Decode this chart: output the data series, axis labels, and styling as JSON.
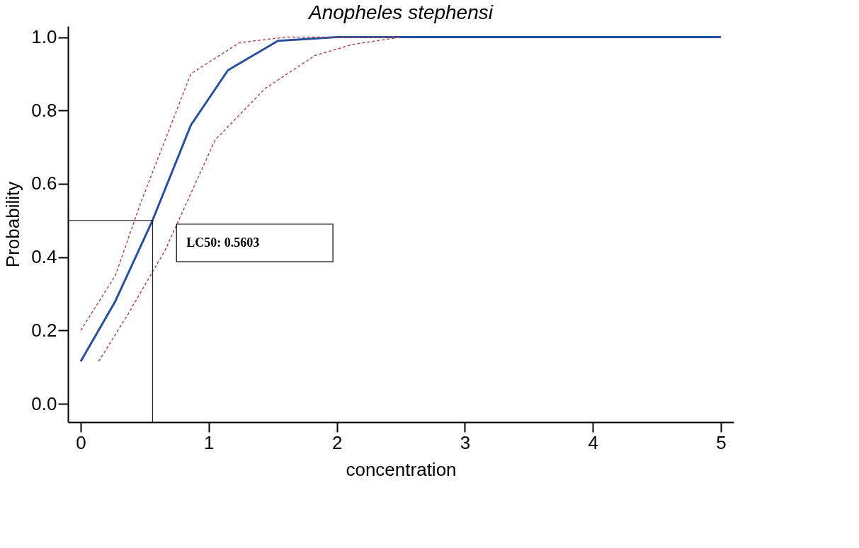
{
  "chart_data": {
    "type": "line",
    "title": "Anopheles stephensi",
    "xlabel": "concentration",
    "ylabel": "Probability",
    "xlim": [
      -0.1,
      5.1
    ],
    "ylim": [
      -0.05,
      1.03
    ],
    "xticks": [
      0,
      1,
      2,
      3,
      4,
      5
    ],
    "yticks": [
      {
        "value": 0,
        "label": "0.0"
      },
      0.2,
      0.4,
      0.6,
      0.8,
      {
        "value": 1,
        "label": "1.0"
      }
    ],
    "grid": false,
    "series": [
      {
        "line_style": "solid",
        "color": "#2a4f9e",
        "x": [
          0,
          0.27,
          0.56,
          0.86,
          1.15,
          1.54,
          2.0,
          3.0,
          4.0,
          5.0
        ],
        "values": [
          0.116,
          0.28,
          0.5,
          0.76,
          0.91,
          0.99,
          1.0,
          1.0,
          1.0,
          1.0
        ]
      },
      {
        "line_style": "dashed",
        "color": "#b04a55",
        "x": [
          0,
          0.27,
          0.47,
          0.86,
          1.24,
          1.6,
          2.0,
          2.5
        ],
        "values": [
          0.2,
          0.35,
          0.55,
          0.9,
          0.985,
          1.0,
          1.0,
          1.0
        ]
      },
      {
        "line_style": "dashed",
        "color": "#b04a55",
        "x": [
          0.14,
          0.37,
          0.66,
          1.05,
          1.44,
          1.83,
          2.12,
          2.5
        ],
        "values": [
          0.116,
          0.245,
          0.42,
          0.72,
          0.86,
          0.95,
          0.98,
          1.0
        ]
      }
    ],
    "ref_lines": [
      {
        "axis": "y",
        "value": 0.5,
        "color": "#000000"
      },
      {
        "axis": "x",
        "value": 0.5603,
        "color": "#000000"
      }
    ],
    "annotations": [
      "LC50: 0.5603"
    ]
  }
}
